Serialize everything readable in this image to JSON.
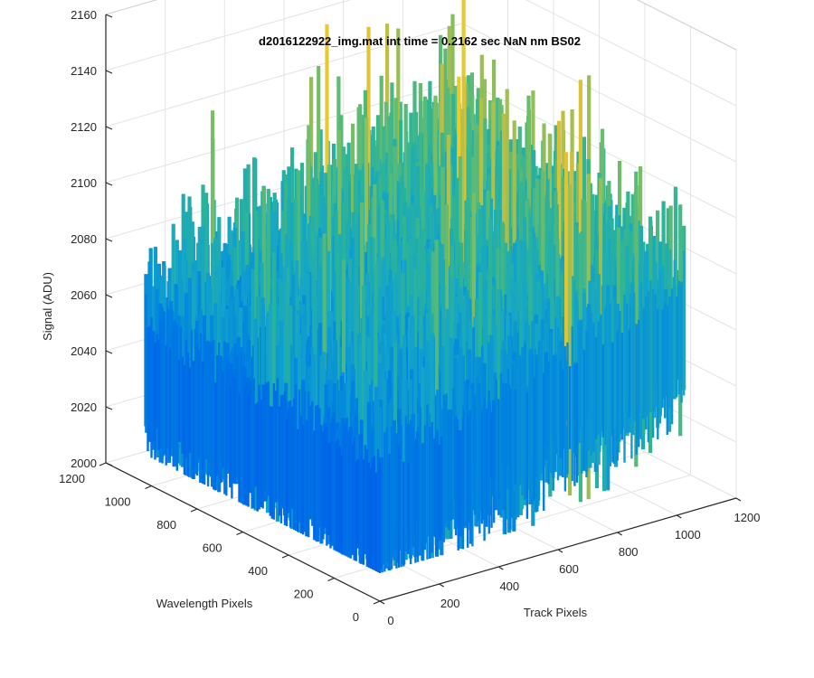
{
  "chart_data": {
    "type": "surface",
    "title": "d2016122922_img.mat int time = 0.2162 sec  NaN nm BS02",
    "xlabel": "Track Pixels",
    "ylabel": "Wavelength Pixels",
    "zlabel": "Signal (ADU)",
    "xlim": [
      0,
      1200
    ],
    "ylim": [
      0,
      1200
    ],
    "zlim": [
      2000,
      2160
    ],
    "x_ticks": [
      "0",
      "200",
      "400",
      "600",
      "800",
      "1000",
      "1200"
    ],
    "y_ticks": [
      "0",
      "200",
      "400",
      "600",
      "800",
      "1000",
      "1200"
    ],
    "z_ticks": [
      "2000",
      "2020",
      "2040",
      "2060",
      "2080",
      "2100",
      "2120",
      "2140",
      "2160"
    ],
    "grid": true,
    "colormap": "parula",
    "surface_mean_z": 2060,
    "surface_extent": {
      "x": [
        0,
        1024
      ],
      "y": [
        0,
        1024
      ]
    },
    "surface_mean_corners": {
      "x0_y0": 2035,
      "x1024_y0": 2068,
      "x0_y1024": 2042,
      "x1024_y1024": 2076
    },
    "surface_min_z": 2010,
    "surface_max_z": 2155,
    "colors": {
      "low": "#0072e0",
      "mid": "#2aae8e",
      "high": "#f0c22a",
      "grid": "#e3e3e3",
      "axis": "#262626"
    }
  }
}
